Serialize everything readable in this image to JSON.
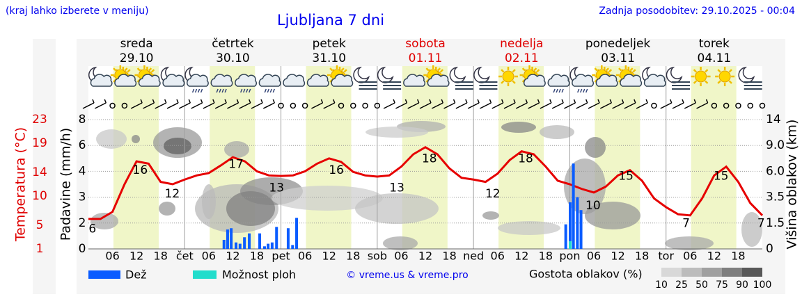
{
  "header": {
    "note": "(kraj lahko izberete v meniju)",
    "updated": "Zadnja posodobitev: 29.10.2025 - 00:04"
  },
  "chart_data": {
    "type": "meteogram",
    "title": "Ljubljana 7 dni",
    "days": [
      {
        "name": "sreda",
        "date": "29.10",
        "color": "#000000"
      },
      {
        "name": "četrtek",
        "date": "30.10",
        "color": "#000000"
      },
      {
        "name": "petek",
        "date": "31.10",
        "color": "#000000"
      },
      {
        "name": "sobota",
        "date": "01.11",
        "color": "#e00000"
      },
      {
        "name": "nedelja",
        "date": "02.11",
        "color": "#e00000"
      },
      {
        "name": "ponedeljek",
        "date": "03.11",
        "color": "#000000"
      },
      {
        "name": "torek",
        "date": "04.11",
        "color": "#000000"
      }
    ],
    "xlim": [
      0,
      168
    ],
    "xticks": [
      {
        "value": 6,
        "label": "06"
      },
      {
        "value": 12,
        "label": "12"
      },
      {
        "value": 18,
        "label": "18"
      },
      {
        "value": 24,
        "label": "čet"
      },
      {
        "value": 30,
        "label": "06"
      },
      {
        "value": 36,
        "label": "12"
      },
      {
        "value": 42,
        "label": "18"
      },
      {
        "value": 48,
        "label": "pet"
      },
      {
        "value": 54,
        "label": "06"
      },
      {
        "value": 60,
        "label": "12"
      },
      {
        "value": 66,
        "label": "18"
      },
      {
        "value": 72,
        "label": "sob"
      },
      {
        "value": 78,
        "label": "06"
      },
      {
        "value": 84,
        "label": "12"
      },
      {
        "value": 90,
        "label": "18"
      },
      {
        "value": 96,
        "label": "ned"
      },
      {
        "value": 102,
        "label": "06"
      },
      {
        "value": 108,
        "label": "12"
      },
      {
        "value": 114,
        "label": "18"
      },
      {
        "value": 120,
        "label": "pon"
      },
      {
        "value": 126,
        "label": "06"
      },
      {
        "value": 132,
        "label": "12"
      },
      {
        "value": 138,
        "label": "18"
      },
      {
        "value": 144,
        "label": "tor"
      },
      {
        "value": 150,
        "label": "06"
      },
      {
        "value": 156,
        "label": "12"
      },
      {
        "value": 162,
        "label": "18"
      }
    ],
    "ylabel": "Padavine (mm/h)",
    "ylim": [
      0,
      8
    ],
    "yticks": [
      0,
      2,
      3,
      4,
      6,
      8
    ],
    "y2label": "Višina oblakov (km)",
    "y2lim": [
      0,
      14
    ],
    "y2ticks": [
      0,
      1.5,
      3.5,
      {
        "value": 6,
        "label": "6.0"
      },
      {
        "value": 9,
        "label": "9.0"
      },
      14
    ],
    "templabel": "Temperatura (°C)",
    "templim": [
      1,
      23
    ],
    "tempticks": [
      1,
      5,
      10,
      14,
      19,
      23
    ],
    "grid": true,
    "series": [
      {
        "color": "#e60000",
        "axis": "temp",
        "x": [
          0,
          3,
          6,
          9,
          12,
          15,
          18,
          21,
          24,
          27,
          30,
          33,
          36,
          39,
          42,
          45,
          48,
          51,
          54,
          57,
          60,
          63,
          66,
          69,
          72,
          75,
          78,
          81,
          84,
          87,
          90,
          93,
          96,
          99,
          102,
          105,
          108,
          111,
          114,
          117,
          120,
          123,
          126,
          129,
          132,
          135,
          138,
          141,
          144,
          147,
          150,
          153,
          156,
          159,
          162,
          165,
          168
        ],
        "values": [
          6.1,
          6.1,
          7.3,
          12,
          15.9,
          15.5,
          12.4,
          12,
          12.8,
          13.5,
          13.9,
          15.2,
          16.6,
          15.9,
          14.2,
          13.5,
          13.4,
          13.5,
          14.2,
          15.5,
          16.4,
          15.8,
          14.1,
          13.5,
          13.3,
          13.5,
          15,
          17.1,
          18.3,
          17.1,
          14.7,
          13.1,
          12.8,
          12.4,
          13.8,
          16.1,
          17.6,
          17.1,
          15,
          12.6,
          12,
          11.2,
          10.6,
          11.6,
          13.5,
          14.4,
          12.6,
          9.6,
          8.1,
          6.9,
          6.7,
          9.6,
          13.5,
          15,
          12.4,
          8.8,
          6.7
        ]
      },
      {
        "name": "Dež",
        "color": "#0a5cff",
        "x": [
          33.8,
          34.7,
          35.6,
          36.8,
          37.8,
          38.9,
          40.1,
          42.7,
          43.9,
          44.8,
          45.8,
          46.9,
          49.8,
          50.9,
          51.9,
          119,
          120.1,
          120.9,
          121.9,
          122.8
        ],
        "values": [
          0.7,
          1.5,
          1.6,
          0.5,
          0.4,
          0.9,
          1.2,
          1.2,
          0.2,
          0.4,
          0.5,
          1.7,
          1.6,
          0.3,
          2.2,
          1.9,
          2.8,
          4.6,
          3,
          2.5
        ]
      },
      {
        "name": "Možnost ploh",
        "color": "#22ddcc",
        "x": [
          120.1
        ],
        "values": [
          0.6
        ]
      }
    ],
    "temp_labels": [
      {
        "x": 1,
        "value": 6
      },
      {
        "x": 12.9,
        "value": 16
      },
      {
        "x": 20.9,
        "value": 12
      },
      {
        "x": 36.8,
        "value": 17
      },
      {
        "x": 46.9,
        "value": 13
      },
      {
        "x": 61.8,
        "value": 16
      },
      {
        "x": 76.9,
        "value": 13
      },
      {
        "x": 85,
        "value": 18
      },
      {
        "x": 100.8,
        "value": 12
      },
      {
        "x": 109,
        "value": 18
      },
      {
        "x": 125.8,
        "value": 10
      },
      {
        "x": 134,
        "value": 15
      },
      {
        "x": 149,
        "value": 7
      },
      {
        "x": 157.7,
        "value": 15
      },
      {
        "x": 167.7,
        "value": 7
      }
    ],
    "copyright": "© vreme.us & vreme.pro",
    "cloud_legend": {
      "label": "Gostota oblakov (%)",
      "levels": [
        10,
        25,
        50,
        75,
        90,
        100
      ]
    }
  }
}
